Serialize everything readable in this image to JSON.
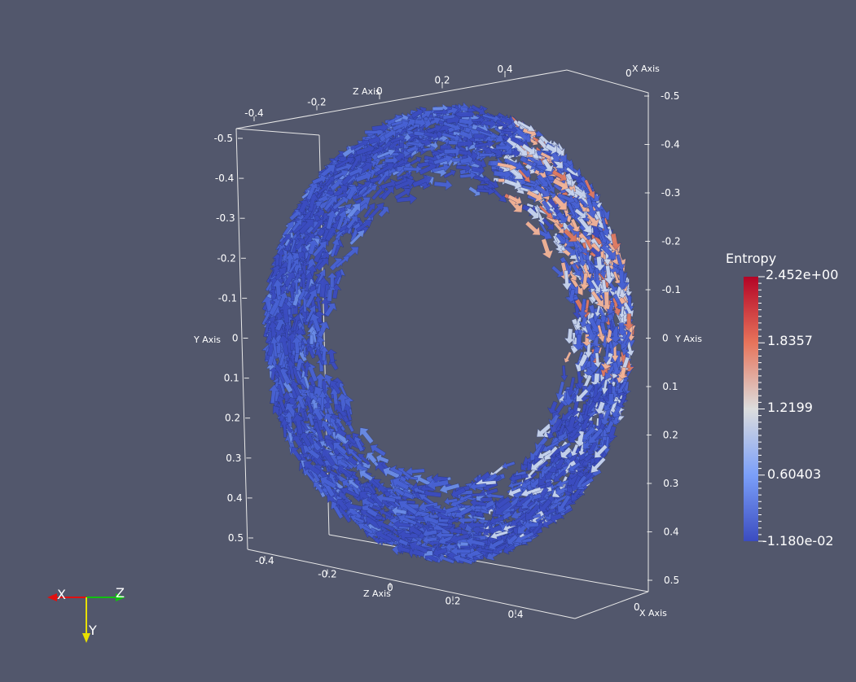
{
  "scene": {
    "background": "#52576c",
    "glyph_colors": [
      "#3b4cc0",
      "#4862d4",
      "#6a8ce8",
      "#c9d6ef",
      "#f4b496",
      "#e07a5f"
    ]
  },
  "axes": {
    "left_y": {
      "title": "Y Axis",
      "ticks": [
        "-0.5",
        "-0.4",
        "-0.3",
        "-0.2",
        "-0.1",
        "0",
        "0.1",
        "0.2",
        "0.3",
        "0.4",
        "0.5"
      ]
    },
    "right_y": {
      "title": "Y Axis",
      "ticks": [
        "-0.5",
        "-0.4",
        "-0.3",
        "-0.2",
        "-0.1",
        "0",
        "0.1",
        "0.2",
        "0.3",
        "0.4",
        "0.5"
      ]
    },
    "top_z": {
      "title": "Z Axis",
      "ticks": [
        "-0.4",
        "-0.2",
        "0",
        "0.2",
        "0.4"
      ]
    },
    "bottom_z": {
      "title": "Z Axis",
      "ticks": [
        "-0.4",
        "-0.2",
        "0",
        "0.2",
        "0.4"
      ]
    },
    "top_x": {
      "title": "X Axis",
      "ticks": [
        "0"
      ]
    },
    "bottom_x": {
      "title": "X Axis",
      "ticks": [
        "0"
      ]
    }
  },
  "colorbar": {
    "title": "Entropy",
    "labels": [
      "2.452e+00",
      "1.8357",
      "1.2199",
      "0.60403",
      "-1.180e-02"
    ],
    "colors": [
      "#b40426",
      "#e7745b",
      "#dcdddd",
      "#7b9ff9",
      "#3b4cc0"
    ]
  },
  "orientation": {
    "x_label": "X",
    "y_label": "Y",
    "z_label": "Z",
    "x_color": "#e01010",
    "y_color": "#e8e000",
    "z_color": "#10c010"
  }
}
